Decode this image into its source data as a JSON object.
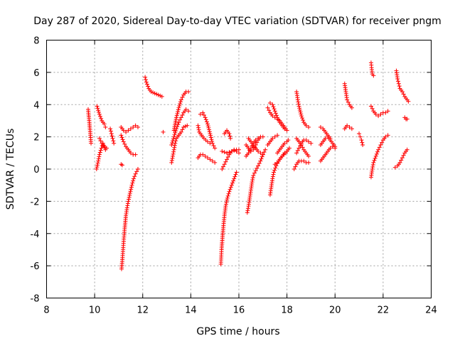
{
  "chart_data": {
    "type": "scatter",
    "title": "Day 287 of 2020, Sidereal Day-to-day VTEC variation (SDTVAR) for receiver pngm",
    "xlabel": "GPS time / hours",
    "ylabel": "SDTVAR / TECUs",
    "xlim": [
      8,
      24
    ],
    "ylim": [
      -8,
      8
    ],
    "xticks": [
      "8",
      "10",
      "12",
      "14",
      "16",
      "18",
      "20",
      "22",
      "24"
    ],
    "yticks": [
      "8",
      "6",
      "4",
      "2",
      "0",
      "-2",
      "-4",
      "-6",
      "-8"
    ],
    "grid": true,
    "marker": "plus",
    "color": "#ff0000",
    "segments": [
      [
        [
          9.73,
          3.7
        ],
        [
          9.78,
          2.9
        ],
        [
          9.82,
          2.2
        ],
        [
          9.85,
          1.6
        ]
      ],
      [
        [
          10.1,
          3.9
        ],
        [
          10.2,
          3.4
        ],
        [
          10.3,
          3.0
        ],
        [
          10.4,
          2.8
        ],
        [
          10.45,
          2.6
        ]
      ],
      [
        [
          10.08,
          0.0
        ],
        [
          10.15,
          0.5
        ],
        [
          10.2,
          0.9
        ],
        [
          10.28,
          1.3
        ],
        [
          10.35,
          1.6
        ],
        [
          10.45,
          1.2
        ]
      ],
      [
        [
          10.2,
          1.9
        ],
        [
          10.3,
          1.6
        ],
        [
          10.4,
          1.4
        ],
        [
          10.5,
          1.3
        ]
      ],
      [
        [
          10.65,
          2.5
        ],
        [
          10.7,
          2.2
        ],
        [
          10.75,
          1.9
        ],
        [
          10.8,
          1.6
        ]
      ],
      [
        [
          11.1,
          0.3
        ],
        [
          11.15,
          0.25
        ]
      ],
      [
        [
          11.1,
          2.1
        ],
        [
          11.2,
          1.7
        ],
        [
          11.3,
          1.4
        ],
        [
          11.4,
          1.2
        ],
        [
          11.5,
          1.0
        ],
        [
          11.6,
          0.9
        ],
        [
          11.7,
          0.9
        ]
      ],
      [
        [
          11.1,
          2.6
        ],
        [
          11.2,
          2.4
        ],
        [
          11.3,
          2.3
        ],
        [
          11.4,
          2.4
        ],
        [
          11.5,
          2.5
        ],
        [
          11.6,
          2.6
        ],
        [
          11.7,
          2.7
        ],
        [
          11.8,
          2.6
        ]
      ],
      [
        [
          11.12,
          -6.2
        ],
        [
          11.16,
          -5.5
        ],
        [
          11.2,
          -4.6
        ],
        [
          11.25,
          -3.7
        ],
        [
          11.3,
          -2.9
        ],
        [
          11.35,
          -2.4
        ],
        [
          11.4,
          -2.0
        ],
        [
          11.47,
          -1.5
        ],
        [
          11.55,
          -1.0
        ],
        [
          11.62,
          -0.6
        ],
        [
          11.7,
          -0.3
        ],
        [
          11.8,
          0.0
        ]
      ],
      [
        [
          12.1,
          5.7
        ],
        [
          12.15,
          5.4
        ],
        [
          12.25,
          5.0
        ],
        [
          12.35,
          4.8
        ],
        [
          12.5,
          4.7
        ],
        [
          12.65,
          4.6
        ],
        [
          12.8,
          4.5
        ]
      ],
      [
        [
          12.85,
          2.3
        ]
      ],
      [
        [
          13.2,
          0.4
        ],
        [
          13.25,
          0.8
        ],
        [
          13.3,
          1.2
        ],
        [
          13.35,
          1.6
        ],
        [
          13.4,
          1.9
        ],
        [
          13.5,
          2.1
        ],
        [
          13.6,
          2.3
        ],
        [
          13.7,
          2.6
        ],
        [
          13.85,
          2.7
        ]
      ],
      [
        [
          13.2,
          1.5
        ],
        [
          13.3,
          2.0
        ],
        [
          13.4,
          2.5
        ],
        [
          13.5,
          2.9
        ],
        [
          13.6,
          3.2
        ],
        [
          13.7,
          3.5
        ],
        [
          13.8,
          3.7
        ],
        [
          13.9,
          3.6
        ]
      ],
      [
        [
          13.3,
          2.4
        ],
        [
          13.4,
          3.2
        ],
        [
          13.5,
          3.8
        ],
        [
          13.6,
          4.3
        ],
        [
          13.7,
          4.6
        ],
        [
          13.8,
          4.8
        ],
        [
          13.9,
          4.8
        ]
      ],
      [
        [
          14.3,
          2.7
        ],
        [
          14.35,
          2.3
        ],
        [
          14.45,
          2.1
        ],
        [
          14.55,
          1.9
        ],
        [
          14.7,
          1.7
        ],
        [
          14.8,
          1.6
        ]
      ],
      [
        [
          14.4,
          3.4
        ],
        [
          14.5,
          3.5
        ],
        [
          14.6,
          3.2
        ],
        [
          14.7,
          2.8
        ],
        [
          14.8,
          2.2
        ],
        [
          14.9,
          1.6
        ],
        [
          15.0,
          1.3
        ]
      ],
      [
        [
          14.3,
          0.7
        ],
        [
          14.4,
          0.9
        ],
        [
          14.5,
          0.9
        ],
        [
          14.6,
          0.8
        ],
        [
          14.7,
          0.7
        ],
        [
          14.8,
          0.6
        ],
        [
          14.9,
          0.5
        ],
        [
          15.0,
          0.4
        ]
      ],
      [
        [
          15.25,
          -5.9
        ],
        [
          15.28,
          -5.0
        ],
        [
          15.32,
          -4.2
        ],
        [
          15.36,
          -3.5
        ],
        [
          15.4,
          -2.9
        ],
        [
          15.45,
          -2.3
        ],
        [
          15.52,
          -1.8
        ],
        [
          15.6,
          -1.4
        ],
        [
          15.7,
          -1.0
        ],
        [
          15.8,
          -0.6
        ],
        [
          15.9,
          -0.2
        ]
      ],
      [
        [
          15.3,
          0.0
        ],
        [
          15.4,
          0.3
        ],
        [
          15.5,
          0.6
        ],
        [
          15.6,
          0.9
        ],
        [
          15.7,
          1.1
        ],
        [
          15.8,
          1.2
        ],
        [
          15.9,
          1.1
        ],
        [
          16.0,
          1.0
        ]
      ],
      [
        [
          15.4,
          2.2
        ],
        [
          15.5,
          2.4
        ],
        [
          15.6,
          2.2
        ],
        [
          15.65,
          1.9
        ]
      ],
      [
        [
          15.3,
          1.1
        ],
        [
          15.5,
          1.0
        ],
        [
          15.7,
          1.1
        ],
        [
          15.9,
          1.2
        ],
        [
          16.0,
          1.2
        ]
      ],
      [
        [
          16.35,
          -2.7
        ],
        [
          16.4,
          -2.3
        ],
        [
          16.45,
          -1.8
        ],
        [
          16.5,
          -1.3
        ],
        [
          16.55,
          -0.8
        ],
        [
          16.6,
          -0.4
        ],
        [
          16.7,
          -0.1
        ],
        [
          16.8,
          0.2
        ],
        [
          16.9,
          0.5
        ],
        [
          17.0,
          0.9
        ],
        [
          17.1,
          1.2
        ]
      ],
      [
        [
          16.3,
          1.5
        ],
        [
          16.4,
          1.3
        ],
        [
          16.5,
          1.1
        ],
        [
          16.6,
          1.2
        ],
        [
          16.7,
          1.5
        ],
        [
          16.8,
          1.8
        ],
        [
          16.9,
          2.0
        ],
        [
          17.0,
          2.0
        ]
      ],
      [
        [
          16.3,
          0.8
        ],
        [
          16.4,
          1.0
        ],
        [
          16.5,
          1.3
        ],
        [
          16.6,
          1.6
        ],
        [
          16.7,
          1.8
        ],
        [
          16.8,
          1.9
        ]
      ],
      [
        [
          16.4,
          1.9
        ],
        [
          16.5,
          1.7
        ],
        [
          16.6,
          1.5
        ],
        [
          16.7,
          1.3
        ],
        [
          16.8,
          1.1
        ],
        [
          16.9,
          1.0
        ],
        [
          17.0,
          0.9
        ]
      ],
      [
        [
          17.3,
          -1.6
        ],
        [
          17.35,
          -1.1
        ],
        [
          17.4,
          -0.6
        ],
        [
          17.45,
          -0.2
        ],
        [
          17.55,
          0.2
        ],
        [
          17.65,
          0.5
        ],
        [
          17.8,
          0.8
        ],
        [
          17.95,
          1.0
        ],
        [
          18.1,
          1.3
        ]
      ],
      [
        [
          17.2,
          3.8
        ],
        [
          17.3,
          3.5
        ],
        [
          17.4,
          3.3
        ],
        [
          17.5,
          3.2
        ],
        [
          17.6,
          3.1
        ],
        [
          17.7,
          3.0
        ],
        [
          17.8,
          2.8
        ],
        [
          17.9,
          2.6
        ],
        [
          18.0,
          2.4
        ]
      ],
      [
        [
          17.3,
          4.1
        ],
        [
          17.4,
          4.0
        ],
        [
          17.5,
          3.6
        ],
        [
          17.6,
          3.2
        ],
        [
          17.7,
          2.9
        ],
        [
          17.8,
          2.7
        ],
        [
          17.9,
          2.5
        ]
      ],
      [
        [
          17.2,
          1.5
        ],
        [
          17.3,
          1.7
        ],
        [
          17.4,
          1.9
        ],
        [
          17.5,
          2.0
        ],
        [
          17.6,
          2.1
        ]
      ],
      [
        [
          17.5,
          0.3
        ],
        [
          17.6,
          0.4
        ],
        [
          17.7,
          0.6
        ],
        [
          17.8,
          0.8
        ],
        [
          17.9,
          1.0
        ],
        [
          18.0,
          1.1
        ]
      ],
      [
        [
          17.6,
          1.0
        ],
        [
          17.7,
          1.2
        ],
        [
          17.8,
          1.4
        ],
        [
          17.9,
          1.6
        ],
        [
          18.0,
          1.7
        ],
        [
          18.05,
          1.8
        ]
      ],
      [
        [
          18.4,
          4.8
        ],
        [
          18.45,
          4.3
        ],
        [
          18.5,
          3.9
        ],
        [
          18.6,
          3.3
        ],
        [
          18.7,
          2.9
        ],
        [
          18.8,
          2.7
        ],
        [
          18.9,
          2.6
        ]
      ],
      [
        [
          18.3,
          0.0
        ],
        [
          18.4,
          0.3
        ],
        [
          18.5,
          0.5
        ],
        [
          18.6,
          0.5
        ],
        [
          18.7,
          0.5
        ],
        [
          18.8,
          0.4
        ],
        [
          18.9,
          0.4
        ]
      ],
      [
        [
          18.4,
          1.0
        ],
        [
          18.5,
          1.3
        ],
        [
          18.6,
          1.6
        ],
        [
          18.7,
          1.8
        ],
        [
          18.8,
          1.8
        ],
        [
          18.9,
          1.7
        ],
        [
          19.0,
          1.6
        ]
      ],
      [
        [
          18.4,
          1.9
        ],
        [
          18.5,
          1.7
        ],
        [
          18.6,
          1.5
        ],
        [
          18.7,
          1.2
        ],
        [
          18.8,
          1.0
        ],
        [
          18.9,
          0.8
        ]
      ],
      [
        [
          19.4,
          2.6
        ],
        [
          19.5,
          2.5
        ],
        [
          19.6,
          2.3
        ],
        [
          19.7,
          2.1
        ],
        [
          19.8,
          1.9
        ]
      ],
      [
        [
          19.4,
          0.5
        ],
        [
          19.5,
          0.7
        ],
        [
          19.6,
          0.9
        ],
        [
          19.7,
          1.1
        ],
        [
          19.8,
          1.3
        ],
        [
          19.9,
          1.4
        ],
        [
          20.0,
          1.3
        ]
      ],
      [
        [
          19.4,
          1.5
        ],
        [
          19.5,
          1.7
        ],
        [
          19.6,
          1.9
        ],
        [
          19.7,
          2.0
        ],
        [
          19.8,
          1.8
        ],
        [
          19.9,
          1.6
        ],
        [
          20.0,
          1.4
        ]
      ],
      [
        [
          20.4,
          5.3
        ],
        [
          20.45,
          4.8
        ],
        [
          20.5,
          4.3
        ],
        [
          20.6,
          4.0
        ],
        [
          20.7,
          3.8
        ]
      ],
      [
        [
          20.4,
          2.5
        ],
        [
          20.5,
          2.7
        ],
        [
          20.6,
          2.6
        ],
        [
          20.7,
          2.5
        ]
      ],
      [
        [
          21.0,
          2.2
        ],
        [
          21.05,
          2.0
        ],
        [
          21.1,
          1.8
        ],
        [
          21.15,
          1.5
        ]
      ],
      [
        [
          21.5,
          6.6
        ],
        [
          21.52,
          6.3
        ],
        [
          21.55,
          5.9
        ],
        [
          21.6,
          5.8
        ]
      ],
      [
        [
          21.5,
          3.9
        ],
        [
          21.6,
          3.6
        ],
        [
          21.7,
          3.4
        ],
        [
          21.8,
          3.3
        ],
        [
          21.9,
          3.4
        ],
        [
          22.0,
          3.5
        ],
        [
          22.1,
          3.5
        ],
        [
          22.2,
          3.6
        ]
      ],
      [
        [
          21.5,
          -0.5
        ],
        [
          21.55,
          0.0
        ],
        [
          21.6,
          0.4
        ],
        [
          21.7,
          0.8
        ],
        [
          21.8,
          1.2
        ],
        [
          21.9,
          1.5
        ],
        [
          22.0,
          1.8
        ],
        [
          22.1,
          2.0
        ],
        [
          22.2,
          2.1
        ]
      ],
      [
        [
          22.55,
          6.1
        ],
        [
          22.6,
          5.6
        ],
        [
          22.65,
          5.3
        ],
        [
          22.7,
          5.0
        ],
        [
          22.8,
          4.8
        ],
        [
          22.9,
          4.5
        ],
        [
          23.0,
          4.3
        ],
        [
          23.05,
          4.2
        ]
      ],
      [
        [
          22.5,
          0.1
        ],
        [
          22.6,
          0.2
        ],
        [
          22.7,
          0.4
        ],
        [
          22.8,
          0.7
        ],
        [
          22.9,
          1.0
        ],
        [
          23.0,
          1.2
        ]
      ],
      [
        [
          22.9,
          3.2
        ],
        [
          22.95,
          3.1
        ],
        [
          23.0,
          3.1
        ]
      ]
    ]
  }
}
